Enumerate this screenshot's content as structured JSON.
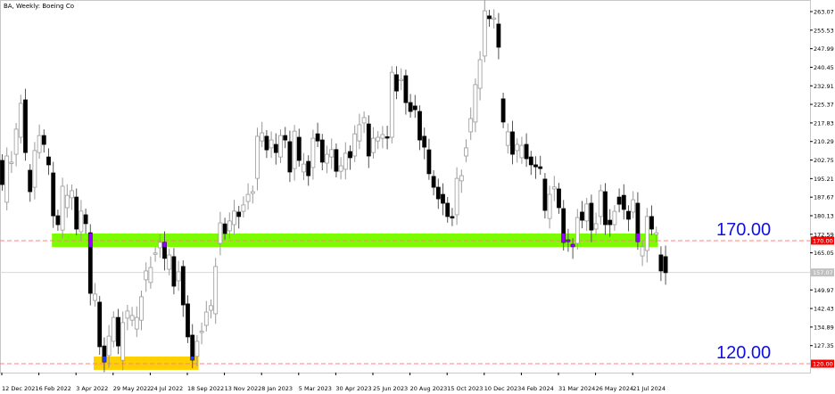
{
  "window": {
    "title": "BA, Weekly:  Boeing Co"
  },
  "colors": {
    "bull_body": "#ffffff",
    "bull_border": "#9a9a9a",
    "bear_body": "#000000",
    "support_zone": "#7cfc00",
    "low_zone": "#ffd000",
    "zone_candle_upper": "#9400ff",
    "zone_candle_lower": "#1e3cff",
    "level_line": "#ff8080",
    "level_text": "#1010e0",
    "current_price_label": "#c0c0c0"
  },
  "chart_data": {
    "type": "candlestick",
    "symbol": "BA",
    "timeframe": "Weekly",
    "yrange": [
      117,
      266
    ],
    "price_ticks": [
      "263.07",
      "255.53",
      "247.99",
      "240.45",
      "232.91",
      "225.37",
      "217.83",
      "210.29",
      "202.75",
      "195.21",
      "187.67",
      "180.13",
      "172.59",
      "165.05",
      "149.97",
      "142.43",
      "134.89",
      "127.35"
    ],
    "date_ticks": [
      "12 Dec 2021",
      "6 Feb 2022",
      "3 Apr 2022",
      "29 May 2022",
      "24 Jul 2022",
      "18 Sep 2022",
      "13 Nov 2022",
      "8 Jan 2023",
      "5 Mar 2023",
      "30 Apr 2023",
      "25 Jun 2023",
      "20 Aug 2023",
      "15 Oct 2023",
      "10 Dec 2023",
      "4 Feb 2024",
      "31 Mar 2024",
      "26 May 2024",
      "21 Jul 2024"
    ],
    "candles": [
      [
        202.6,
        192.8
      ],
      [
        185.6,
        204.4
      ],
      [
        201.6,
        201.9
      ],
      [
        205.1,
        215.3
      ],
      [
        212,
        225.8
      ],
      [
        227.2,
        205.8
      ],
      [
        198.6,
        189.9
      ],
      [
        191.7,
        206.6
      ],
      [
        205.8,
        212.7
      ],
      [
        212.7,
        209.1
      ],
      [
        204,
        200.8
      ],
      [
        197.5,
        180.1
      ],
      [
        180.1,
        176.5
      ],
      [
        174.3,
        192.1
      ],
      [
        183.4,
        188.4
      ],
      [
        187.4,
        190.3
      ],
      [
        187.7,
        174.7
      ],
      [
        173.6,
        182
      ],
      [
        180.5,
        176.9
      ],
      [
        173.2,
        148.6
      ],
      [
        145.7,
        148.3
      ],
      [
        145,
        126.9
      ],
      [
        127.2,
        120.7
      ],
      [
        123.3,
        131.2
      ],
      [
        129.1,
        138.8
      ],
      [
        138.8,
        127.2
      ],
      [
        121.4,
        136.7
      ],
      [
        138.5,
        141.4
      ],
      [
        137.7,
        139.6
      ],
      [
        134.1,
        138.8
      ],
      [
        137.7,
        147.2
      ],
      [
        154.1,
        157.7
      ],
      [
        153,
        159.1
      ],
      [
        164.7,
        165
      ],
      [
        167.1,
        169.3
      ],
      [
        169.3,
        162.8
      ],
      [
        158.4,
        164.2
      ],
      [
        163.5,
        151.5
      ],
      [
        153.7,
        157.3
      ],
      [
        159.5,
        143.9
      ],
      [
        144.3,
        130.9
      ],
      [
        131.6,
        121.5
      ],
      [
        123,
        129.1
      ],
      [
        132.8,
        133.2
      ],
      [
        135.6,
        141
      ],
      [
        141.7,
        143.6
      ],
      [
        140.3,
        159.5
      ],
      [
        168.9,
        177.2
      ],
      [
        176.8,
        172.9
      ],
      [
        174,
        178
      ],
      [
        176.5,
        182
      ],
      [
        181.6,
        179.8
      ],
      [
        181.9,
        184.5
      ],
      [
        185.9,
        188.8
      ],
      [
        189.2,
        189.9
      ],
      [
        195.3,
        212.4
      ],
      [
        210.5,
        213.8
      ],
      [
        212.4,
        206.9
      ],
      [
        207.7,
        210.9
      ],
      [
        209.1,
        205.8
      ],
      [
        204,
        212.7
      ],
      [
        212.7,
        210.9
      ],
      [
        210.2,
        197.9
      ],
      [
        199.3,
        214.5
      ],
      [
        212,
        202.6
      ],
      [
        197.9,
        201.1
      ],
      [
        202.2,
        196.4
      ],
      [
        199.7,
        211.6
      ],
      [
        213.4,
        210.5
      ],
      [
        210.9,
        201.9
      ],
      [
        201.5,
        205.1
      ],
      [
        204,
        207
      ],
      [
        207,
        198.2
      ],
      [
        198.2,
        200.4
      ],
      [
        199,
        205.5
      ],
      [
        206.2,
        203.7
      ],
      [
        204.4,
        213.4
      ],
      [
        210.5,
        217.1
      ],
      [
        217.8,
        220
      ],
      [
        217.4,
        204.4
      ],
      [
        205.8,
        211.6
      ],
      [
        210.5,
        212
      ],
      [
        211.6,
        213.1
      ],
      [
        212.2,
        212
      ],
      [
        212,
        238.4
      ],
      [
        237.4,
        230.8
      ],
      [
        235.3,
        235.5
      ],
      [
        237,
        226.1
      ],
      [
        226.1,
        222.5
      ],
      [
        224.7,
        223.2
      ],
      [
        222.5,
        210.9
      ],
      [
        212.4,
        208
      ],
      [
        206.9,
        197.2
      ],
      [
        196.1,
        191.7
      ],
      [
        191.7,
        187
      ],
      [
        188.8,
        185.2
      ],
      [
        185.2,
        179.8
      ],
      [
        179.8,
        179.2
      ],
      [
        180.5,
        195.3
      ],
      [
        194.3,
        196.4
      ],
      [
        204.4,
        207.7
      ],
      [
        214.2,
        219.6
      ],
      [
        218.2,
        233.4
      ],
      [
        231.9,
        243.5
      ],
      [
        245,
        263.4
      ],
      [
        261.3,
        260.2
      ],
      [
        260.3,
        260.5
      ],
      [
        258,
        248.6
      ],
      [
        227.6,
        218.2
      ],
      [
        208.7,
        214.2
      ],
      [
        214.2,
        205.1
      ],
      [
        206.6,
        209.1
      ],
      [
        203.7,
        208.7
      ],
      [
        209.1,
        203.3
      ],
      [
        204,
        200.8
      ],
      [
        200.8,
        200
      ],
      [
        200,
        199.3
      ],
      [
        195,
        182.3
      ],
      [
        179,
        188.8
      ],
      [
        191,
        191.8
      ],
      [
        191,
        183.4
      ],
      [
        183,
        169.3
      ],
      [
        170.3,
        169.6
      ],
      [
        168.5,
        167.5
      ],
      [
        168.9,
        179.4
      ],
      [
        181.6,
        178.3
      ],
      [
        178,
        184.9
      ],
      [
        185.2,
        174.3
      ],
      [
        174.7,
        176.9
      ],
      [
        179.8,
        190.3
      ],
      [
        189.9,
        176.5
      ],
      [
        178.3,
        176.5
      ],
      [
        176.5,
        181.9
      ],
      [
        187.7,
        184.8
      ],
      [
        188.4,
        182.7
      ],
      [
        181.9,
        178.7
      ],
      [
        181.6,
        186.6
      ],
      [
        185.2,
        169.6
      ],
      [
        163.8,
        167.5
      ],
      [
        166,
        179.8
      ],
      [
        179.8,
        174.7
      ],
      [
        172.5,
        173.2
      ],
      [
        164.2,
        157.7
      ],
      [
        163.5,
        157
      ]
    ],
    "levels": [
      {
        "price": 170.0,
        "label": "170.00",
        "axis_label": "170.00"
      },
      {
        "price": 120.0,
        "label": "120.00",
        "axis_label": "120.00"
      }
    ],
    "zones": [
      {
        "name": "resistance",
        "top": 172.9,
        "bottom": 167.4,
        "from_candle": 11,
        "to_candle": 142
      },
      {
        "name": "low",
        "top": 122.9,
        "bottom": 117.5,
        "from_candle": 20,
        "to_candle": 43
      }
    ],
    "current_price": {
      "value": 157.07,
      "label": "157.07"
    }
  }
}
